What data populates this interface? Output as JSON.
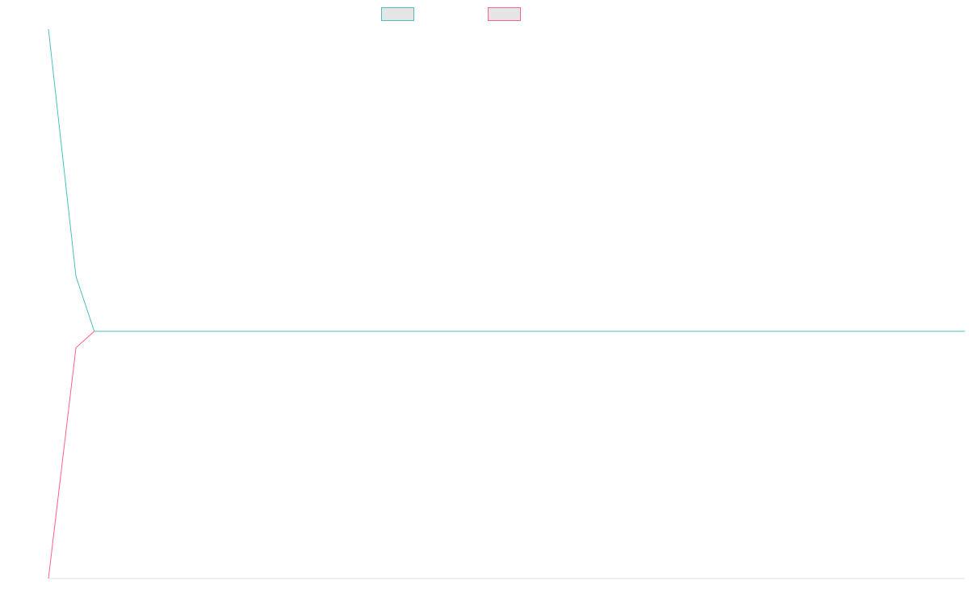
{
  "chart_data": {
    "type": "line",
    "title": "",
    "xlabel": "",
    "ylabel": "",
    "grid": false,
    "legend": "top",
    "series": [
      {
        "color": "#4bc0c0",
        "legend_fill": "#e5e5e5",
        "points": [
          {
            "x": 0,
            "y": 1.0
          },
          {
            "x": 0.3,
            "y": 0.55
          },
          {
            "x": 0.5,
            "y": 0.45
          },
          {
            "x": 10,
            "y": 0.45
          }
        ]
      },
      {
        "color": "#ff6384",
        "legend_fill": "#e5e5e5",
        "points": [
          {
            "x": 0,
            "y": 0.0
          },
          {
            "x": 0.3,
            "y": 0.42
          },
          {
            "x": 0.5,
            "y": 0.45
          }
        ]
      }
    ],
    "xlim": [
      0,
      10
    ],
    "ylim": [
      0,
      1.0
    ]
  }
}
